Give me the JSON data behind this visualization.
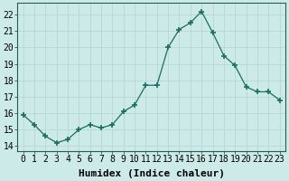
{
  "x": [
    0,
    1,
    2,
    3,
    4,
    5,
    6,
    7,
    8,
    9,
    10,
    11,
    12,
    13,
    14,
    15,
    16,
    17,
    18,
    19,
    20,
    21,
    22,
    23
  ],
  "y": [
    15.9,
    15.3,
    14.6,
    14.2,
    14.4,
    15.0,
    15.3,
    15.1,
    15.3,
    16.1,
    16.5,
    17.7,
    17.7,
    20.0,
    21.1,
    21.5,
    22.2,
    20.9,
    19.5,
    18.9,
    17.6,
    17.3,
    17.3,
    16.8
  ],
  "line_color": "#1a6e62",
  "marker": "+",
  "marker_size": 4,
  "marker_linewidth": 1.2,
  "bg_color": "#cceae7",
  "grid_color": "#b8d8d5",
  "xlabel": "Humidex (Indice chaleur)",
  "ylabel_ticks": [
    14,
    15,
    16,
    17,
    18,
    19,
    20,
    21,
    22
  ],
  "xlim": [
    -0.5,
    23.5
  ],
  "ylim": [
    13.7,
    22.7
  ],
  "xlabel_fontsize": 8,
  "tick_fontsize": 7
}
